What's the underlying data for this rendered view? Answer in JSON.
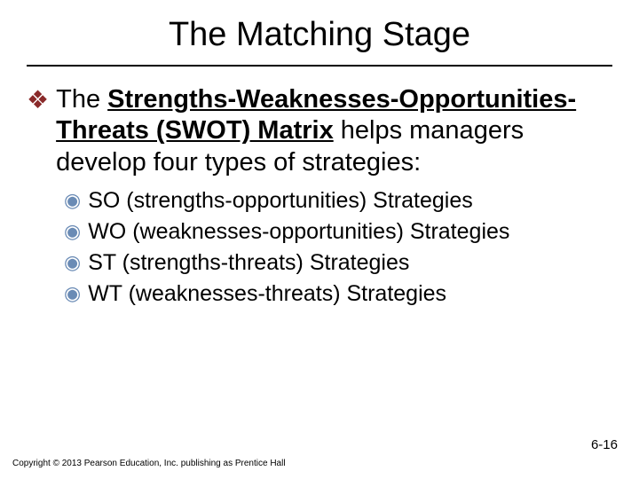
{
  "title": "The Matching Stage",
  "main_bullet": {
    "lead": "The ",
    "bold_underline_1": "Strengths-Weaknesses-Opportunities-Threats (SWOT) Matrix",
    "rest": " helps managers develop four types of strategies:"
  },
  "sub_bullets": [
    "SO (strengths-opportunities) Strategies",
    "WO (weaknesses-opportunities) Strategies",
    "ST (strengths-threats) Strategies",
    "WT (weaknesses-threats) Strategies"
  ],
  "footer_left": "Copyright © 2013 Pearson Education, Inc. publishing as Prentice Hall",
  "footer_right": "6-16",
  "colors": {
    "diamond": "#8a2a2a",
    "sub_marker": "#6a8bb5",
    "rule": "#000000",
    "text": "#000000",
    "background": "#ffffff"
  }
}
